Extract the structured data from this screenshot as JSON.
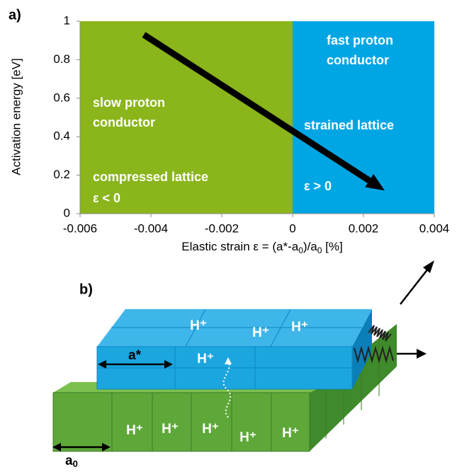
{
  "chart_data": {
    "type": "region",
    "panel_label": "a)",
    "ylabel": "Activation energy [eV]",
    "xlabel_parts": [
      "Elastic strain ε = (a*-a",
      "0",
      ")/a",
      "0",
      " [%]"
    ],
    "xlim": [
      -0.006,
      0.004
    ],
    "ylim": [
      0,
      1
    ],
    "xticks": [
      -0.006,
      -0.004,
      -0.002,
      0,
      0.002,
      0.004
    ],
    "yticks": [
      0,
      0.2,
      0.4,
      0.6,
      0.8,
      1
    ],
    "regions": [
      {
        "x": [
          -0.006,
          0
        ],
        "color": "#8ab51b",
        "labels": [
          "slow proton",
          "conductor",
          "compressed lattice",
          "ε < 0"
        ]
      },
      {
        "x": [
          0,
          0.004
        ],
        "color": "#00a6e4",
        "labels": [
          "fast proton",
          "conductor",
          "strained lattice",
          "ε > 0"
        ]
      }
    ],
    "arrow": {
      "x": [
        -0.0042,
        0.0026
      ],
      "y": [
        0.93,
        0.12
      ],
      "color": "#000000"
    }
  },
  "diagram": {
    "panel_label": "b)",
    "top_protons": [
      "H⁺",
      "H⁺",
      "H⁺",
      "H⁺"
    ],
    "bottom_protons": [
      "H⁺",
      "H⁺",
      "H⁺",
      "H⁺",
      "H⁺"
    ],
    "top_lattice": "a*",
    "bottom_lattice": [
      "a",
      "0"
    ]
  }
}
